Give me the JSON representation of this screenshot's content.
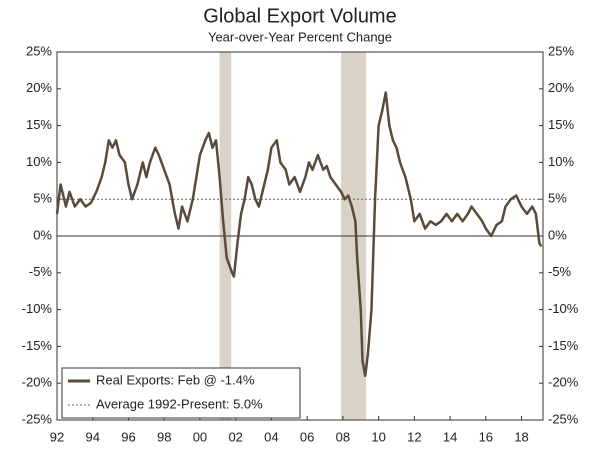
{
  "chart_data": {
    "type": "line",
    "title": "Global Export Volume",
    "subtitle": "Year-over-Year Percent Change",
    "x": [
      1992.0,
      1992.2,
      1992.5,
      1992.7,
      1993.0,
      1993.3,
      1993.6,
      1993.9,
      1994.2,
      1994.5,
      1994.7,
      1994.9,
      1995.1,
      1995.3,
      1995.5,
      1995.8,
      1996.0,
      1996.2,
      1996.5,
      1996.8,
      1997.0,
      1997.2,
      1997.5,
      1997.7,
      1998.0,
      1998.3,
      1998.6,
      1998.8,
      1999.0,
      1999.3,
      1999.6,
      1999.8,
      2000.0,
      2000.3,
      2000.5,
      2000.7,
      2000.9,
      2001.1,
      2001.3,
      2001.5,
      2001.8,
      2001.9,
      2002.1,
      2002.3,
      2002.5,
      2002.7,
      2002.9,
      2003.1,
      2003.3,
      2003.6,
      2003.8,
      2004.0,
      2004.3,
      2004.5,
      2004.8,
      2005.0,
      2005.3,
      2005.6,
      2005.9,
      2006.1,
      2006.3,
      2006.6,
      2006.9,
      2007.1,
      2007.3,
      2007.6,
      2007.9,
      2008.1,
      2008.3,
      2008.5,
      2008.7,
      2008.8,
      2009.0,
      2009.1,
      2009.25,
      2009.4,
      2009.6,
      2009.8,
      2010.0,
      2010.2,
      2010.4,
      2010.6,
      2010.8,
      2011.0,
      2011.2,
      2011.5,
      2011.8,
      2012.0,
      2012.3,
      2012.6,
      2012.9,
      2013.2,
      2013.5,
      2013.8,
      2014.1,
      2014.4,
      2014.7,
      2015.0,
      2015.2,
      2015.5,
      2015.8,
      2016.0,
      2016.3,
      2016.6,
      2016.9,
      2017.1,
      2017.4,
      2017.7,
      2018.0,
      2018.3,
      2018.6,
      2018.8,
      2018.9,
      2019.0,
      2019.1
    ],
    "series": [
      {
        "name": "Real Exports: Feb @ -1.4%",
        "color": "#5a4a3a",
        "values": [
          3,
          7,
          4,
          6,
          4,
          5,
          4,
          4.5,
          6,
          8,
          10,
          13,
          12,
          13,
          11,
          10,
          7,
          5,
          7,
          10,
          8,
          10,
          12,
          11,
          9,
          7,
          3,
          1,
          4,
          2,
          5,
          8,
          11,
          13,
          14,
          12,
          13,
          8,
          2,
          -3,
          -5,
          -5.5,
          -1,
          3,
          5,
          8,
          7,
          5,
          4,
          7,
          9,
          12,
          13,
          10,
          9,
          7,
          8,
          6,
          8,
          10,
          9,
          11,
          9,
          9.5,
          8,
          7,
          6,
          5,
          5.5,
          4,
          2,
          -3,
          -10,
          -17,
          -19,
          -16,
          -10,
          5,
          15,
          17,
          19.5,
          15,
          13,
          12,
          10,
          8,
          5,
          2,
          3,
          1,
          2,
          1.5,
          2,
          3,
          2,
          3,
          2,
          3,
          4,
          3,
          2,
          1,
          0,
          1.5,
          2,
          4,
          5,
          5.5,
          4,
          3,
          4,
          3,
          1,
          -1,
          -1.4
        ]
      }
    ],
    "reference_lines": [
      {
        "name": "Average 1992-Present: 5.0%",
        "value": 5,
        "color": "#666"
      }
    ],
    "recessions": [
      [
        2001.1,
        2001.75
      ],
      [
        2007.9,
        2009.3
      ]
    ],
    "recession_color": "#d9d2c6",
    "xlim": [
      1992,
      2019.2
    ],
    "xticks": [
      {
        "value": 1992,
        "label": "92"
      },
      {
        "value": 1994,
        "label": "94"
      },
      {
        "value": 1996,
        "label": "96"
      },
      {
        "value": 1998,
        "label": "98"
      },
      {
        "value": 2000,
        "label": "00"
      },
      {
        "value": 2002,
        "label": "02"
      },
      {
        "value": 2004,
        "label": "04"
      },
      {
        "value": 2006,
        "label": "06"
      },
      {
        "value": 2008,
        "label": "08"
      },
      {
        "value": 2010,
        "label": "10"
      },
      {
        "value": 2012,
        "label": "12"
      },
      {
        "value": 2014,
        "label": "14"
      },
      {
        "value": 2016,
        "label": "16"
      },
      {
        "value": 2018,
        "label": "18"
      }
    ],
    "ylim": [
      -25,
      25
    ],
    "yticks": [
      {
        "value": -25,
        "label": "-25%"
      },
      {
        "value": -20,
        "label": "-20%"
      },
      {
        "value": -15,
        "label": "-15%"
      },
      {
        "value": -10,
        "label": "-10%"
      },
      {
        "value": -5,
        "label": "-5%"
      },
      {
        "value": 0,
        "label": "0%"
      },
      {
        "value": 5,
        "label": "5%"
      },
      {
        "value": 10,
        "label": "10%"
      },
      {
        "value": 15,
        "label": "15%"
      },
      {
        "value": 20,
        "label": "20%"
      },
      {
        "value": 25,
        "label": "25%"
      }
    ],
    "legend": "lower left"
  }
}
